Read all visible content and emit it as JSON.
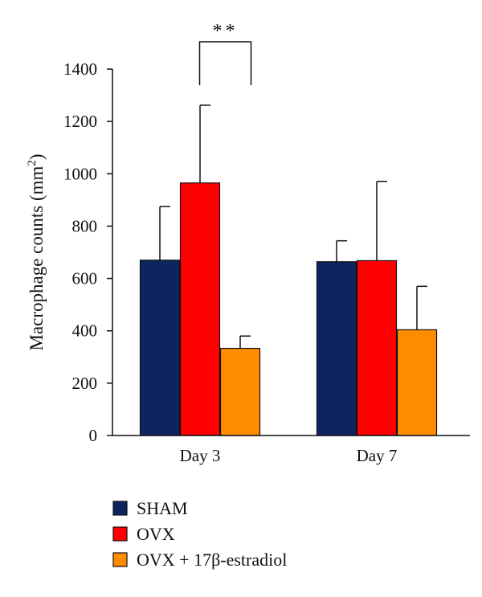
{
  "chart_data": {
    "type": "bar",
    "categories": [
      "Day 3",
      "Day 7"
    ],
    "series": [
      {
        "name": "SHAM",
        "values": [
          670,
          664
        ],
        "errors": [
          205,
          80
        ],
        "color": "#0d245e"
      },
      {
        "name": "OVX",
        "values": [
          965,
          668
        ],
        "errors": [
          297,
          303
        ],
        "color": "#ff0000"
      },
      {
        "name": "OVX + 17β-estradiol",
        "values": [
          333,
          404
        ],
        "errors": [
          47,
          166
        ],
        "color": "#ff8c00"
      }
    ],
    "ylabel": {
      "main": "Macrophage counts (mm",
      "superscript": "2",
      "suffix": ")"
    },
    "ylim": [
      0,
      1400
    ],
    "yticks": [
      0,
      200,
      400,
      600,
      800,
      1000,
      1200,
      1400
    ],
    "legend_position": "bottom-left",
    "grid": false,
    "significance": {
      "label": "**",
      "category": "Day 3",
      "between": [
        "SHAM",
        "OVX"
      ]
    }
  }
}
